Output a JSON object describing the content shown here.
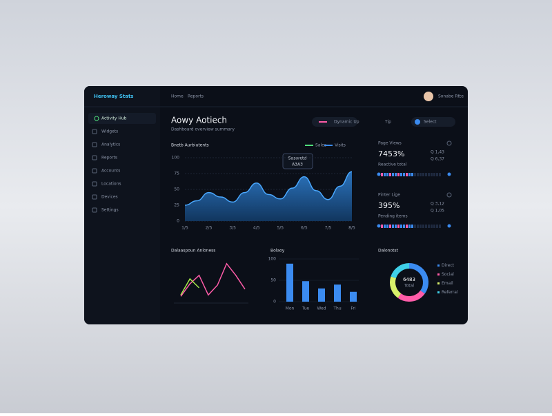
{
  "app": {
    "logo": "Heroway Stats",
    "nav": [
      "Home",
      "Reports"
    ],
    "user": "Sonabe Rtte"
  },
  "sidebar": {
    "items": [
      "Activity Hub",
      "Widgets",
      "Analytics",
      "Reports",
      "Accounts",
      "Locations",
      "Devices",
      "Settings"
    ]
  },
  "header": {
    "title": "Aowy Aotiech",
    "subtitle": "Dashboard overview summary",
    "button": "Dynamic Up",
    "tip": "Tip",
    "filter": "Select"
  },
  "area_chart": {
    "title": "Bnetb Aurbiutents",
    "legend": [
      "Sales",
      "Visits"
    ],
    "x": [
      0,
      1,
      2,
      3,
      4,
      5,
      6,
      7,
      8,
      9,
      10,
      11,
      12,
      13,
      14
    ],
    "values": [
      25,
      32,
      45,
      38,
      30,
      45,
      60,
      42,
      35,
      52,
      70,
      48,
      34,
      55,
      78
    ],
    "xlim": [
      0,
      14
    ],
    "ylim": [
      0,
      100
    ],
    "yticks": [
      0,
      25,
      50,
      75,
      100
    ],
    "xticks": [
      {
        "value": 0,
        "label": "1/5"
      },
      {
        "value": 2,
        "label": "2/5"
      },
      {
        "value": 4,
        "label": "3/5"
      },
      {
        "value": 6,
        "label": "4/5"
      },
      {
        "value": 8,
        "label": "5/5"
      },
      {
        "value": 10,
        "label": "6/5"
      },
      {
        "value": 12,
        "label": "7/5"
      },
      {
        "value": 14,
        "label": "8/5"
      }
    ],
    "tooltip": {
      "label": "Sasoretd",
      "value": "A3A3"
    }
  },
  "stats": [
    {
      "label": "Page Views",
      "value": "7453%",
      "note": "Reactive total",
      "side": [
        "Q 1,43",
        "Q 6,37"
      ]
    },
    {
      "label": "Pinter Lige",
      "value": "395%",
      "note": "Pending items",
      "side": [
        "Q 3,12",
        "Q 1,05"
      ]
    }
  ],
  "line_chart": {
    "title": "Dalaaspoun Anloness",
    "ylim": [
      0,
      100
    ],
    "series": [
      {
        "color": "#ff5ca8",
        "values": [
          15,
          43,
          62,
          18,
          40,
          88,
          62,
          31
        ]
      },
      {
        "color": "#a6e84a",
        "values": [
          18,
          54,
          34,
          null,
          null,
          null,
          null,
          null
        ]
      }
    ]
  },
  "bar_chart": {
    "title": "Bolaoy",
    "categories": [
      "Mon",
      "Tue",
      "Wed",
      "Thu",
      "Fri"
    ],
    "values": [
      89,
      48,
      31,
      40,
      23
    ],
    "ylim": [
      0,
      100
    ],
    "yticks": [
      0,
      50,
      100
    ],
    "color": "#3b8bf0"
  },
  "donut": {
    "title": "Dalonotst",
    "center_label": "6483",
    "center_sub": "Total",
    "labels": [
      "Direct",
      "Social",
      "Email",
      "Referral"
    ],
    "values": [
      35,
      25,
      20,
      20
    ],
    "colors": [
      "#3b8bf0",
      "#ff5ca8",
      "#d8f06a",
      "#3fd0e8"
    ]
  }
}
